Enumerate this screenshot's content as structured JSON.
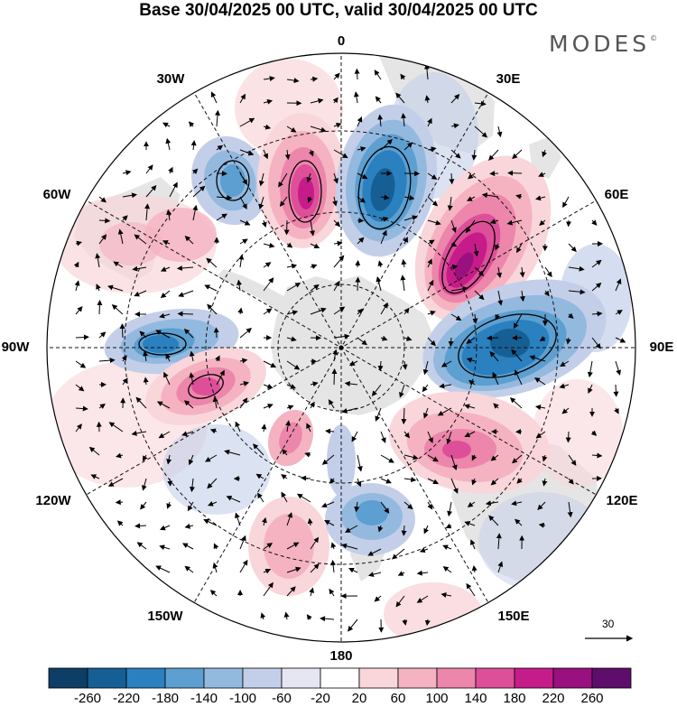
{
  "title": "Base 30/04/2025 00 UTC, valid 30/04/2025 00 UTC",
  "brand": {
    "text": "MODES",
    "mark": "©"
  },
  "longitude_labels": {
    "lon_0": "0",
    "lon_30e": "30E",
    "lon_60e": "60E",
    "lon_90e": "90E",
    "lon_120e": "120E",
    "lon_150e": "150E",
    "lon_180": "180",
    "lon_150w": "150W",
    "lon_120w": "120W",
    "lon_90w": "90W",
    "lon_60w": "60W",
    "lon_30w": "30W"
  },
  "projection": "south-polar-stereographic",
  "reference_vector": {
    "value": "30"
  },
  "colorbar": {
    "labels": [
      "-260",
      "-220",
      "-180",
      "-140",
      "-100",
      "-60",
      "-20",
      "20",
      "60",
      "100",
      "140",
      "180",
      "220",
      "260"
    ],
    "colors": [
      "#0d3e66",
      "#155f95",
      "#2b80bf",
      "#5c9fd0",
      "#94b9df",
      "#c3cfe9",
      "#e6e6f3",
      "#ffffff",
      "#f9d6da",
      "#f5b3c2",
      "#ec86ab",
      "#de4f9a",
      "#c61c8a",
      "#99117f",
      "#5e0d6c"
    ]
  }
}
